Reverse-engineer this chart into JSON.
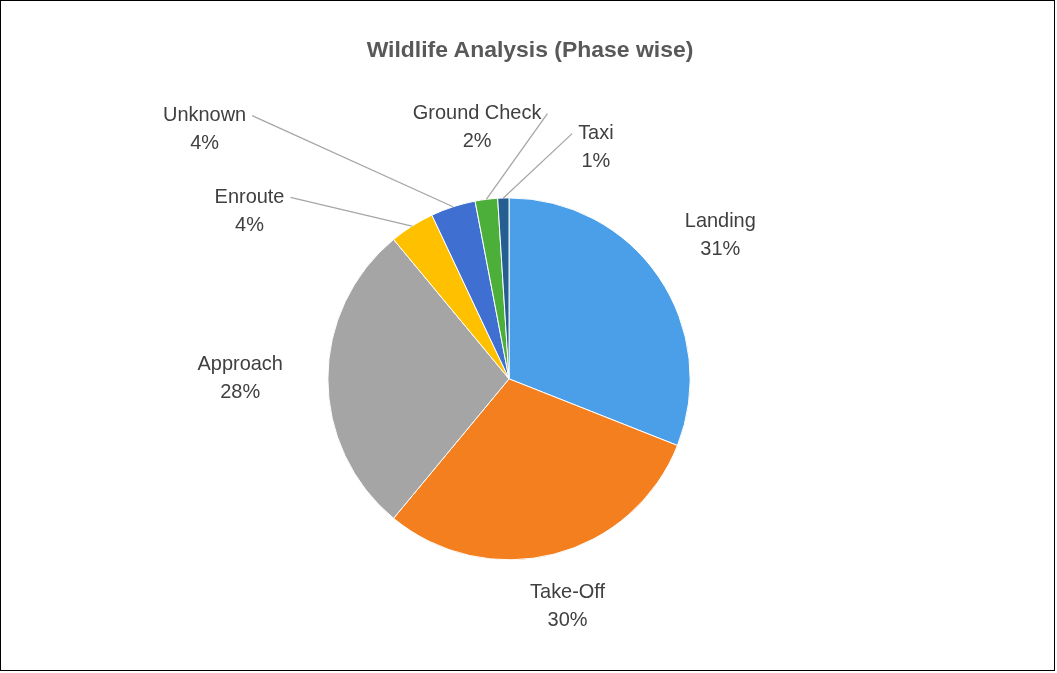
{
  "chart_data": {
    "type": "pie",
    "title": "Wildlife Analysis (Phase wise)",
    "categories": [
      "Landing",
      "Take-Off",
      "Approach",
      "Enroute",
      "Unknown",
      "Ground Check",
      "Taxi"
    ],
    "values": [
      31,
      30,
      28,
      4,
      4,
      2,
      1
    ],
    "colors": [
      "#4a9fe8",
      "#f47f1f",
      "#a5a5a5",
      "#ffc000",
      "#3f6fd0",
      "#4caf3a",
      "#255e91"
    ],
    "value_labels": [
      "31%",
      "30%",
      "28%",
      "4%",
      "4%",
      "2%",
      "1%"
    ],
    "legend": false
  }
}
